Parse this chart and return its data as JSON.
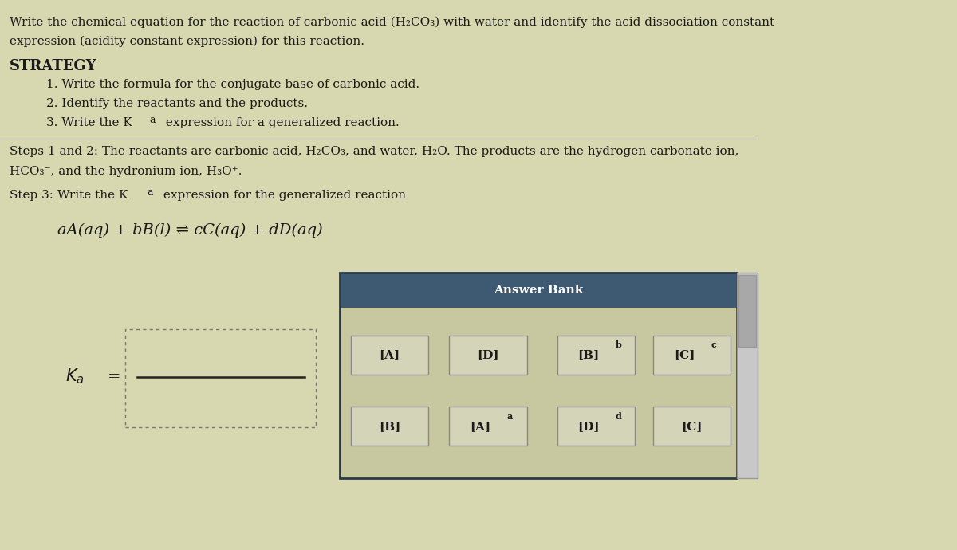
{
  "background_color": "#d8d8b0",
  "text_color": "#1a1a1a",
  "title_line1": "Write the chemical equation for the reaction of carbonic acid (H₂CO₃) with water and identify the acid dissociation constant",
  "title_line2": "expression (acidity constant expression) for this reaction.",
  "strategy_header": "STRATEGY",
  "strategy_items": [
    "1. Write the formula for the conjugate base of carbonic acid.",
    "2. Identify the reactants and the products.",
    "3. Write the Ka expression for a generalized reaction."
  ],
  "steps_text_line1": "Steps 1 and 2: The reactants are carbonic acid, H₂CO₃, and water, H₂O. The products are the hydrogen carbonate ion,",
  "steps_text_line2": "HCO₃⁻, and the hydronium ion, H₃O⁺.",
  "step3_text": "Step 3: Write the Ka expression for the generalized reaction",
  "equation": "aA(aq) + bB(l) ⇌ cC(aq) + dD(aq)",
  "answer_bank_header": "Answer Bank",
  "answer_bank_header_bg": "#3d5a72",
  "answer_bank_bg": "#c8c8a0",
  "answer_bank_border": "#2a3a4a",
  "answer_items_row1": [
    "[A]",
    "[D]",
    "[B]b",
    "[C]c"
  ],
  "answer_items_row2": [
    "[B]",
    "[A]a",
    "[D]d",
    "[C]"
  ],
  "answer_box_color": "#d4d4b8",
  "answer_box_border": "#888888",
  "font_size_title": 11,
  "font_size_body": 11,
  "font_size_strategy": 13,
  "font_size_equation": 14,
  "font_size_answer": 11
}
